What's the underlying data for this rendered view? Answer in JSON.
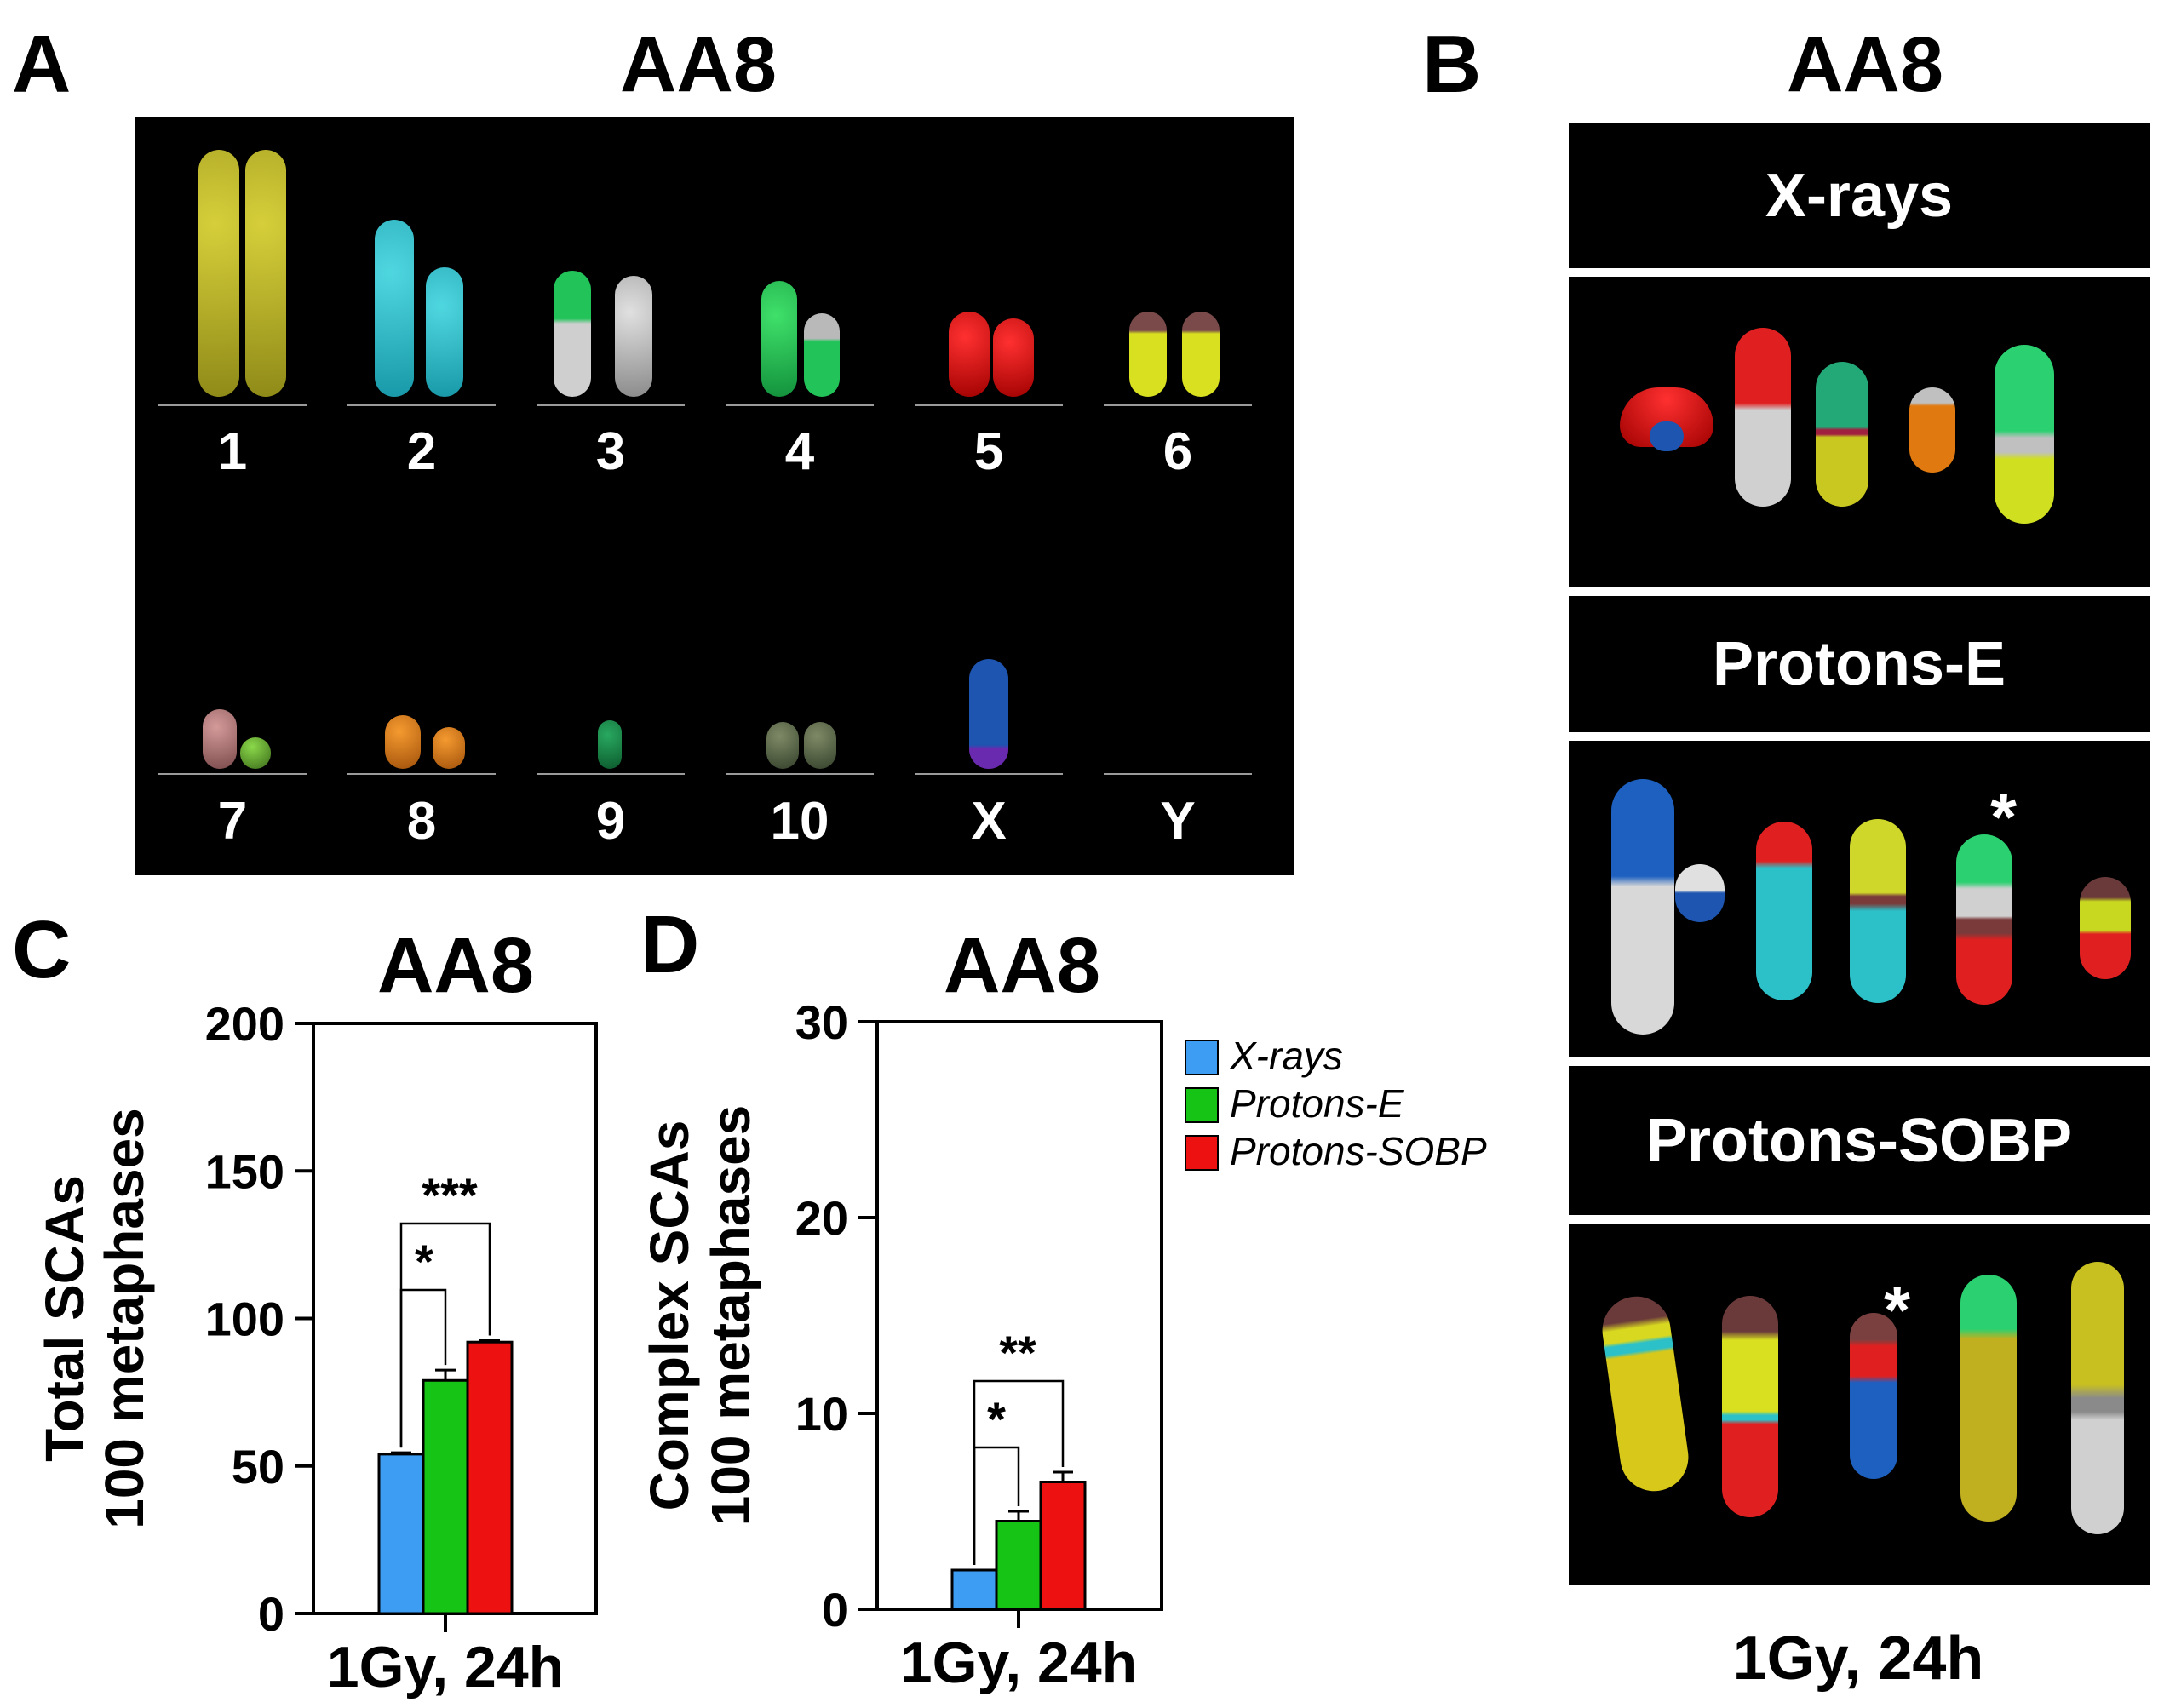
{
  "panel_a": {
    "label": "A",
    "title": "AA8",
    "chromosomes_row1": [
      "1",
      "2",
      "3",
      "4",
      "5",
      "6"
    ],
    "chromosomes_row2": [
      "7",
      "8",
      "9",
      "10",
      "X",
      "Y"
    ]
  },
  "panel_b": {
    "label": "B",
    "title": "AA8",
    "sections": [
      "X-rays",
      "Protons-E",
      "Protons-SOBP"
    ],
    "star": "*",
    "footer": "1Gy, 24h"
  },
  "legend": [
    {
      "label": "X-rays",
      "color": "#3d9df2"
    },
    {
      "label": "Protons-E",
      "color": "#16c416"
    },
    {
      "label": "Protons-SOBP",
      "color": "#ee1111"
    }
  ],
  "chart_data": [
    {
      "panel": "C",
      "type": "bar",
      "title": "AA8",
      "ylabel_line1": "Total SCAs",
      "ylabel_line2": "100 metaphases",
      "xlabel": "1Gy, 24h",
      "ylim": [
        0,
        200
      ],
      "yticks": [
        0,
        50,
        100,
        150,
        200
      ],
      "categories": [
        "1Gy, 24h"
      ],
      "series": [
        {
          "name": "X-rays",
          "values": [
            54
          ],
          "error": [
            0.5
          ]
        },
        {
          "name": "Protons-E",
          "values": [
            79
          ],
          "error": [
            3.5
          ]
        },
        {
          "name": "Protons-SOBP",
          "values": [
            92
          ],
          "error": [
            0.5
          ]
        }
      ],
      "significance": [
        {
          "from": "X-rays",
          "to": "Protons-E",
          "label": "*"
        },
        {
          "from": "X-rays",
          "to": "Protons-SOBP",
          "label": "***"
        }
      ]
    },
    {
      "panel": "D",
      "type": "bar",
      "title": "AA8",
      "ylabel_line1": "Complex SCAs",
      "ylabel_line2": "100 metaphases",
      "xlabel": "1Gy, 24h",
      "ylim": [
        0,
        30
      ],
      "yticks": [
        0,
        10,
        20,
        30
      ],
      "categories": [
        "1Gy, 24h"
      ],
      "series": [
        {
          "name": "X-rays",
          "values": [
            2
          ],
          "error": [
            0
          ]
        },
        {
          "name": "Protons-E",
          "values": [
            4.5
          ],
          "error": [
            0.5
          ]
        },
        {
          "name": "Protons-SOBP",
          "values": [
            6.5
          ],
          "error": [
            0.5
          ]
        }
      ],
      "significance": [
        {
          "from": "X-rays",
          "to": "Protons-E",
          "label": "*"
        },
        {
          "from": "X-rays",
          "to": "Protons-SOBP",
          "label": "**"
        }
      ]
    }
  ]
}
